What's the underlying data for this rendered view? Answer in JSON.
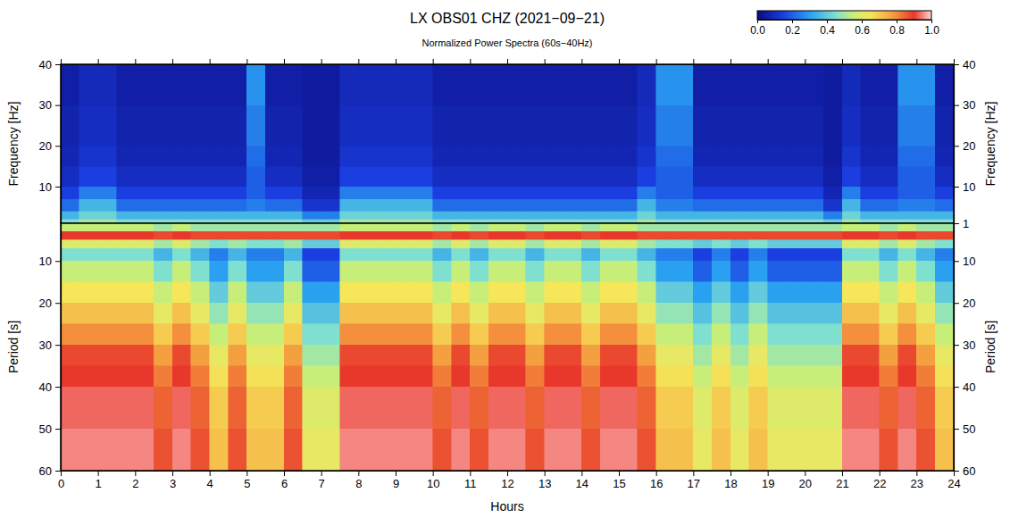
{
  "chart_data": [
    {
      "type": "heatmap",
      "title": "LX OBS01 CHZ (2021−09−21)",
      "subtitle": "Normalized Power Spectra (60s−40Hz)",
      "ylabel": "Frequency [Hz]",
      "y2label": "Frequency [Hz]",
      "xlim": [
        0,
        24
      ],
      "xticks": [
        0,
        1,
        2,
        3,
        4,
        5,
        6,
        7,
        8,
        9,
        10,
        11,
        12,
        13,
        14,
        15,
        16,
        17,
        18,
        19,
        20,
        21,
        22,
        23,
        24
      ],
      "ylim": [
        1,
        40
      ],
      "yticks": [
        10,
        20,
        30,
        40
      ],
      "y2lim": [
        1,
        40
      ],
      "y2ticks": [
        1,
        10,
        20,
        30,
        40
      ],
      "tick_labels": "y",
      "x_bins": [
        0,
        0.5,
        1,
        1.5,
        2,
        2.5,
        3,
        3.5,
        4,
        4.5,
        5,
        5.5,
        6,
        6.5,
        7,
        7.5,
        8,
        8.5,
        9,
        9.5,
        10,
        10.5,
        11,
        11.5,
        12,
        12.5,
        13,
        13.5,
        14,
        14.5,
        15,
        15.5,
        16,
        16.5,
        17,
        17.5,
        18,
        18.5,
        19,
        19.5,
        20,
        20.5,
        21,
        21.5,
        22,
        22.5,
        23,
        23.5,
        24
      ],
      "y_bins": [
        1,
        2,
        4,
        7,
        10,
        15,
        20,
        30,
        40
      ],
      "cells": [
        [
          0.45,
          0.5,
          0.5,
          0.45,
          0.45,
          0.45,
          0.45,
          0.45,
          0.45,
          0.45,
          0.45,
          0.45,
          0.45,
          0.4,
          0.4,
          0.5,
          0.5,
          0.5,
          0.5,
          0.5,
          0.45,
          0.45,
          0.45,
          0.45,
          0.45,
          0.45,
          0.45,
          0.45,
          0.45,
          0.45,
          0.45,
          0.5,
          0.45,
          0.45,
          0.45,
          0.45,
          0.45,
          0.45,
          0.45,
          0.45,
          0.45,
          0.4,
          0.5,
          0.45,
          0.45,
          0.45,
          0.45,
          0.45
        ],
        [
          0.35,
          0.42,
          0.42,
          0.35,
          0.35,
          0.35,
          0.35,
          0.35,
          0.35,
          0.35,
          0.35,
          0.35,
          0.35,
          0.25,
          0.25,
          0.42,
          0.42,
          0.42,
          0.42,
          0.42,
          0.35,
          0.35,
          0.35,
          0.35,
          0.35,
          0.35,
          0.35,
          0.35,
          0.35,
          0.35,
          0.35,
          0.42,
          0.35,
          0.35,
          0.35,
          0.35,
          0.35,
          0.35,
          0.35,
          0.35,
          0.35,
          0.25,
          0.42,
          0.35,
          0.35,
          0.35,
          0.35,
          0.35
        ],
        [
          0.22,
          0.35,
          0.35,
          0.22,
          0.22,
          0.22,
          0.22,
          0.22,
          0.22,
          0.22,
          0.25,
          0.22,
          0.22,
          0.12,
          0.12,
          0.35,
          0.35,
          0.35,
          0.35,
          0.35,
          0.22,
          0.22,
          0.22,
          0.22,
          0.22,
          0.22,
          0.22,
          0.22,
          0.22,
          0.22,
          0.22,
          0.35,
          0.25,
          0.25,
          0.22,
          0.22,
          0.22,
          0.22,
          0.22,
          0.22,
          0.22,
          0.12,
          0.35,
          0.22,
          0.22,
          0.25,
          0.25,
          0.22
        ],
        [
          0.15,
          0.25,
          0.25,
          0.15,
          0.15,
          0.15,
          0.15,
          0.15,
          0.15,
          0.15,
          0.2,
          0.15,
          0.15,
          0.08,
          0.08,
          0.25,
          0.25,
          0.25,
          0.25,
          0.25,
          0.15,
          0.15,
          0.15,
          0.15,
          0.15,
          0.15,
          0.15,
          0.15,
          0.15,
          0.15,
          0.15,
          0.25,
          0.2,
          0.2,
          0.15,
          0.15,
          0.15,
          0.15,
          0.15,
          0.15,
          0.15,
          0.08,
          0.25,
          0.15,
          0.15,
          0.2,
          0.2,
          0.15
        ],
        [
          0.1,
          0.15,
          0.15,
          0.1,
          0.1,
          0.1,
          0.1,
          0.1,
          0.1,
          0.1,
          0.2,
          0.1,
          0.1,
          0.06,
          0.06,
          0.15,
          0.15,
          0.15,
          0.15,
          0.15,
          0.1,
          0.1,
          0.1,
          0.1,
          0.1,
          0.1,
          0.1,
          0.1,
          0.1,
          0.1,
          0.1,
          0.15,
          0.2,
          0.2,
          0.1,
          0.1,
          0.1,
          0.1,
          0.1,
          0.1,
          0.1,
          0.06,
          0.15,
          0.1,
          0.1,
          0.2,
          0.2,
          0.1
        ],
        [
          0.08,
          0.12,
          0.12,
          0.08,
          0.08,
          0.08,
          0.08,
          0.08,
          0.08,
          0.08,
          0.22,
          0.08,
          0.08,
          0.05,
          0.05,
          0.12,
          0.12,
          0.12,
          0.12,
          0.12,
          0.08,
          0.08,
          0.08,
          0.08,
          0.08,
          0.08,
          0.08,
          0.08,
          0.08,
          0.08,
          0.08,
          0.12,
          0.22,
          0.22,
          0.08,
          0.08,
          0.08,
          0.08,
          0.08,
          0.08,
          0.08,
          0.05,
          0.12,
          0.08,
          0.08,
          0.22,
          0.22,
          0.08
        ],
        [
          0.07,
          0.1,
          0.1,
          0.07,
          0.07,
          0.07,
          0.07,
          0.07,
          0.07,
          0.07,
          0.25,
          0.07,
          0.07,
          0.05,
          0.05,
          0.1,
          0.1,
          0.1,
          0.1,
          0.1,
          0.07,
          0.07,
          0.07,
          0.07,
          0.07,
          0.07,
          0.07,
          0.07,
          0.07,
          0.07,
          0.07,
          0.1,
          0.25,
          0.25,
          0.07,
          0.07,
          0.07,
          0.07,
          0.07,
          0.07,
          0.07,
          0.05,
          0.1,
          0.07,
          0.07,
          0.25,
          0.25,
          0.07
        ],
        [
          0.06,
          0.09,
          0.09,
          0.06,
          0.06,
          0.06,
          0.06,
          0.06,
          0.06,
          0.06,
          0.28,
          0.06,
          0.06,
          0.05,
          0.05,
          0.09,
          0.09,
          0.09,
          0.09,
          0.09,
          0.06,
          0.06,
          0.06,
          0.06,
          0.06,
          0.06,
          0.06,
          0.06,
          0.06,
          0.06,
          0.06,
          0.09,
          0.28,
          0.28,
          0.06,
          0.06,
          0.06,
          0.06,
          0.06,
          0.06,
          0.06,
          0.05,
          0.09,
          0.06,
          0.06,
          0.28,
          0.28,
          0.06
        ]
      ],
      "colorbar": {
        "range": [
          0,
          1
        ],
        "ticks": [
          {
            "value": 0,
            "label": "0.0"
          },
          {
            "value": 0.2,
            "label": "0.2"
          },
          {
            "value": 0.4,
            "label": "0.4"
          },
          {
            "value": 0.6,
            "label": "0.6"
          },
          {
            "value": 0.8,
            "label": "0.8"
          },
          {
            "value": 1,
            "label": "1.0"
          }
        ]
      }
    },
    {
      "type": "heatmap",
      "xlabel": "Hours",
      "ylabel": "Period [s]",
      "y2label": "Period [s]",
      "xlim": [
        0,
        24
      ],
      "xticks": [
        0,
        1,
        2,
        3,
        4,
        5,
        6,
        7,
        8,
        9,
        10,
        11,
        12,
        13,
        14,
        15,
        16,
        17,
        18,
        19,
        20,
        21,
        22,
        23,
        24
      ],
      "ylim": [
        1,
        60
      ],
      "yticks": [
        10,
        20,
        30,
        40,
        50,
        60
      ],
      "y2lim": [
        1,
        60
      ],
      "y2ticks": [
        10,
        20,
        30,
        40,
        50,
        60
      ],
      "x_bins": [
        0,
        0.5,
        1,
        1.5,
        2,
        2.5,
        3,
        3.5,
        4,
        4.5,
        5,
        5.5,
        6,
        6.5,
        7,
        7.5,
        8,
        8.5,
        9,
        9.5,
        10,
        10.5,
        11,
        11.5,
        12,
        12.5,
        13,
        13.5,
        14,
        14.5,
        15,
        15.5,
        16,
        16.5,
        17,
        17.5,
        18,
        18.5,
        19,
        19.5,
        20,
        20.5,
        21,
        21.5,
        22,
        22.5,
        23,
        23.5,
        24
      ],
      "y_bins": [
        1,
        3,
        5,
        7,
        10,
        15,
        20,
        25,
        30,
        35,
        40,
        50,
        60
      ],
      "cells": [
        [
          0.55,
          0.55,
          0.55,
          0.55,
          0.55,
          0.5,
          0.55,
          0.5,
          0.5,
          0.5,
          0.5,
          0.5,
          0.5,
          0.5,
          0.5,
          0.55,
          0.55,
          0.55,
          0.55,
          0.55,
          0.5,
          0.55,
          0.5,
          0.55,
          0.55,
          0.5,
          0.55,
          0.55,
          0.5,
          0.55,
          0.55,
          0.5,
          0.5,
          0.5,
          0.5,
          0.5,
          0.5,
          0.5,
          0.5,
          0.5,
          0.5,
          0.5,
          0.55,
          0.55,
          0.5,
          0.55,
          0.5,
          0.5
        ],
        [
          0.9,
          0.9,
          0.9,
          0.9,
          0.9,
          0.88,
          0.9,
          0.88,
          0.88,
          0.88,
          0.88,
          0.88,
          0.88,
          0.88,
          0.88,
          0.9,
          0.9,
          0.9,
          0.9,
          0.9,
          0.88,
          0.9,
          0.88,
          0.9,
          0.9,
          0.88,
          0.9,
          0.9,
          0.88,
          0.9,
          0.9,
          0.88,
          0.88,
          0.88,
          0.88,
          0.88,
          0.88,
          0.88,
          0.88,
          0.88,
          0.88,
          0.88,
          0.9,
          0.9,
          0.88,
          0.9,
          0.88,
          0.88
        ],
        [
          0.6,
          0.6,
          0.6,
          0.6,
          0.6,
          0.5,
          0.6,
          0.5,
          0.45,
          0.5,
          0.45,
          0.45,
          0.5,
          0.4,
          0.4,
          0.6,
          0.6,
          0.6,
          0.6,
          0.6,
          0.5,
          0.6,
          0.5,
          0.6,
          0.6,
          0.5,
          0.6,
          0.6,
          0.5,
          0.6,
          0.6,
          0.5,
          0.45,
          0.45,
          0.4,
          0.45,
          0.4,
          0.45,
          0.4,
          0.4,
          0.4,
          0.4,
          0.6,
          0.6,
          0.5,
          0.6,
          0.5,
          0.45
        ],
        [
          0.45,
          0.45,
          0.45,
          0.45,
          0.45,
          0.35,
          0.45,
          0.35,
          0.25,
          0.35,
          0.25,
          0.25,
          0.35,
          0.15,
          0.15,
          0.45,
          0.45,
          0.45,
          0.45,
          0.45,
          0.35,
          0.45,
          0.35,
          0.45,
          0.45,
          0.35,
          0.45,
          0.45,
          0.35,
          0.45,
          0.45,
          0.35,
          0.25,
          0.25,
          0.15,
          0.25,
          0.15,
          0.25,
          0.15,
          0.15,
          0.15,
          0.15,
          0.45,
          0.45,
          0.35,
          0.45,
          0.35,
          0.25
        ],
        [
          0.55,
          0.55,
          0.55,
          0.55,
          0.55,
          0.45,
          0.55,
          0.45,
          0.3,
          0.45,
          0.3,
          0.3,
          0.45,
          0.2,
          0.2,
          0.55,
          0.55,
          0.55,
          0.55,
          0.55,
          0.45,
          0.55,
          0.45,
          0.55,
          0.55,
          0.45,
          0.55,
          0.55,
          0.45,
          0.55,
          0.55,
          0.45,
          0.3,
          0.3,
          0.2,
          0.3,
          0.2,
          0.3,
          0.2,
          0.2,
          0.2,
          0.2,
          0.55,
          0.55,
          0.45,
          0.55,
          0.45,
          0.3
        ],
        [
          0.65,
          0.65,
          0.65,
          0.65,
          0.65,
          0.55,
          0.65,
          0.55,
          0.4,
          0.55,
          0.4,
          0.4,
          0.55,
          0.3,
          0.3,
          0.65,
          0.65,
          0.65,
          0.65,
          0.65,
          0.55,
          0.65,
          0.55,
          0.65,
          0.65,
          0.55,
          0.65,
          0.65,
          0.55,
          0.65,
          0.65,
          0.55,
          0.4,
          0.4,
          0.3,
          0.4,
          0.3,
          0.4,
          0.3,
          0.3,
          0.3,
          0.3,
          0.65,
          0.65,
          0.55,
          0.65,
          0.55,
          0.4
        ],
        [
          0.72,
          0.72,
          0.72,
          0.72,
          0.72,
          0.62,
          0.72,
          0.62,
          0.48,
          0.62,
          0.48,
          0.48,
          0.62,
          0.38,
          0.38,
          0.72,
          0.72,
          0.72,
          0.72,
          0.72,
          0.62,
          0.72,
          0.62,
          0.72,
          0.72,
          0.62,
          0.72,
          0.72,
          0.62,
          0.72,
          0.72,
          0.62,
          0.48,
          0.48,
          0.38,
          0.48,
          0.38,
          0.48,
          0.38,
          0.38,
          0.38,
          0.38,
          0.72,
          0.72,
          0.62,
          0.72,
          0.62,
          0.48
        ],
        [
          0.8,
          0.8,
          0.8,
          0.8,
          0.8,
          0.7,
          0.8,
          0.7,
          0.55,
          0.7,
          0.55,
          0.55,
          0.7,
          0.45,
          0.45,
          0.8,
          0.8,
          0.8,
          0.8,
          0.8,
          0.7,
          0.8,
          0.7,
          0.8,
          0.8,
          0.7,
          0.8,
          0.8,
          0.7,
          0.8,
          0.8,
          0.7,
          0.55,
          0.55,
          0.45,
          0.55,
          0.45,
          0.55,
          0.45,
          0.45,
          0.45,
          0.45,
          0.8,
          0.8,
          0.7,
          0.8,
          0.7,
          0.55
        ],
        [
          0.88,
          0.88,
          0.88,
          0.88,
          0.88,
          0.78,
          0.88,
          0.78,
          0.62,
          0.78,
          0.62,
          0.62,
          0.78,
          0.5,
          0.5,
          0.88,
          0.88,
          0.88,
          0.88,
          0.88,
          0.78,
          0.88,
          0.78,
          0.88,
          0.88,
          0.78,
          0.88,
          0.88,
          0.78,
          0.88,
          0.88,
          0.78,
          0.62,
          0.62,
          0.5,
          0.62,
          0.5,
          0.62,
          0.5,
          0.5,
          0.5,
          0.5,
          0.88,
          0.88,
          0.78,
          0.88,
          0.78,
          0.62
        ],
        [
          0.9,
          0.9,
          0.9,
          0.9,
          0.9,
          0.82,
          0.9,
          0.82,
          0.66,
          0.82,
          0.66,
          0.66,
          0.82,
          0.55,
          0.55,
          0.9,
          0.9,
          0.9,
          0.9,
          0.9,
          0.82,
          0.9,
          0.82,
          0.9,
          0.9,
          0.82,
          0.9,
          0.9,
          0.82,
          0.9,
          0.9,
          0.82,
          0.66,
          0.66,
          0.55,
          0.66,
          0.55,
          0.66,
          0.55,
          0.55,
          0.55,
          0.55,
          0.9,
          0.9,
          0.82,
          0.9,
          0.82,
          0.66
        ],
        [
          0.93,
          0.93,
          0.93,
          0.93,
          0.93,
          0.85,
          0.93,
          0.85,
          0.7,
          0.85,
          0.7,
          0.7,
          0.85,
          0.6,
          0.6,
          0.93,
          0.93,
          0.93,
          0.93,
          0.93,
          0.85,
          0.93,
          0.85,
          0.93,
          0.93,
          0.85,
          0.93,
          0.93,
          0.85,
          0.93,
          0.93,
          0.85,
          0.7,
          0.7,
          0.6,
          0.7,
          0.6,
          0.7,
          0.6,
          0.6,
          0.6,
          0.6,
          0.93,
          0.93,
          0.85,
          0.93,
          0.85,
          0.7
        ],
        [
          0.95,
          0.95,
          0.95,
          0.95,
          0.95,
          0.87,
          0.95,
          0.87,
          0.72,
          0.87,
          0.72,
          0.72,
          0.87,
          0.62,
          0.62,
          0.95,
          0.95,
          0.95,
          0.95,
          0.95,
          0.87,
          0.95,
          0.87,
          0.95,
          0.95,
          0.87,
          0.95,
          0.95,
          0.87,
          0.95,
          0.95,
          0.87,
          0.72,
          0.72,
          0.62,
          0.72,
          0.62,
          0.72,
          0.62,
          0.62,
          0.62,
          0.62,
          0.95,
          0.95,
          0.87,
          0.95,
          0.87,
          0.72
        ]
      ]
    }
  ]
}
